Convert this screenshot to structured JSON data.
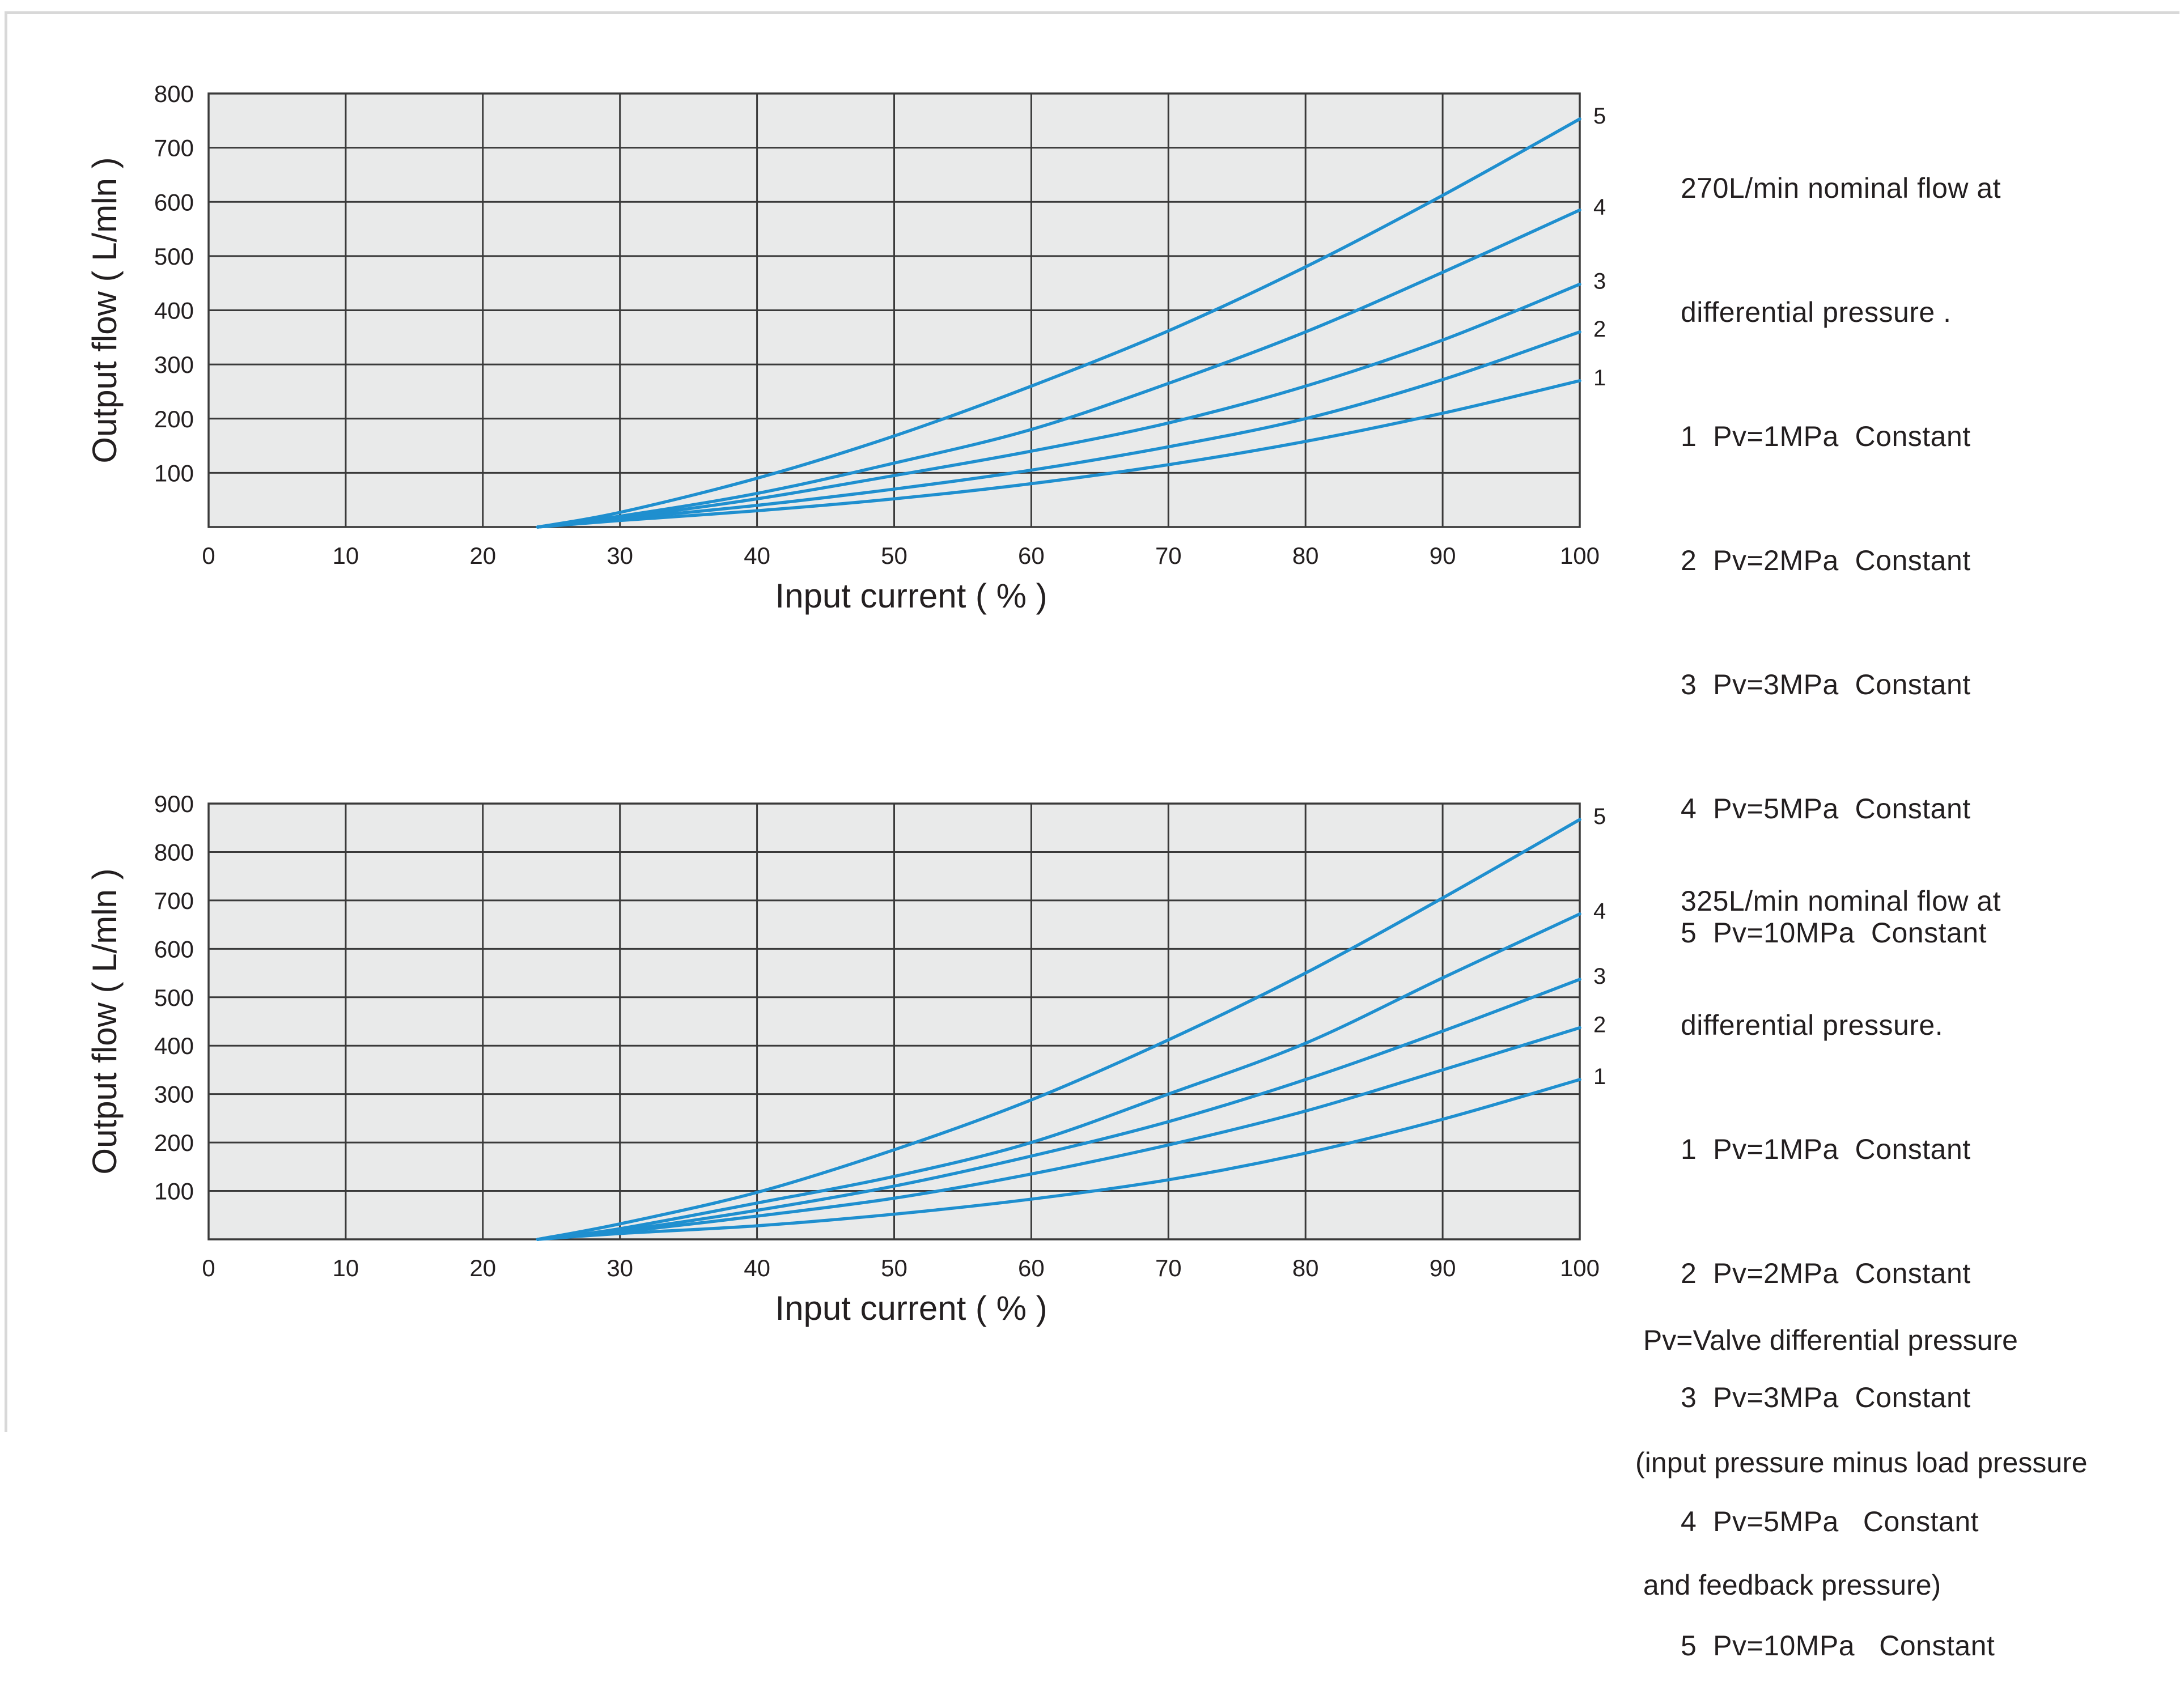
{
  "colors": {
    "curve": "#1f8fcf",
    "plot_bg": "#e9eaea",
    "grid": "#3a3a3a",
    "text": "#231f20"
  },
  "chart_data": [
    {
      "type": "line",
      "xlabel": "Input current  ( % )",
      "ylabel": "Output flow ( L/mln )",
      "xlim": [
        0,
        100
      ],
      "ylim": [
        0,
        800
      ],
      "xticks": [
        0,
        10,
        20,
        30,
        40,
        50,
        60,
        70,
        80,
        90,
        100
      ],
      "yticks": [
        100,
        200,
        300,
        400,
        500,
        600,
        700,
        800
      ],
      "grid": true,
      "legend_position": "right",
      "legend_lines": [
        "270L/min nominal flow at",
        "differential pressure .",
        "1  Pv=1MPa  Constant",
        "2  Pv=2MPa  Constant",
        "3  Pv=3MPa  Constant",
        "4  Pv=5MPa  Constant",
        "5  Pv=10MPa  Constant"
      ],
      "series": [
        {
          "label": "1",
          "x": [
            24,
            30,
            40,
            50,
            60,
            70,
            80,
            90,
            100
          ],
          "y": [
            0,
            12,
            30,
            52,
            80,
            115,
            158,
            210,
            270
          ]
        },
        {
          "label": "2",
          "x": [
            24,
            30,
            40,
            50,
            60,
            70,
            80,
            90,
            100
          ],
          "y": [
            0,
            15,
            40,
            70,
            105,
            148,
            200,
            272,
            360
          ]
        },
        {
          "label": "3",
          "x": [
            24,
            30,
            40,
            50,
            60,
            70,
            80,
            90,
            100
          ],
          "y": [
            0,
            17,
            52,
            95,
            140,
            192,
            260,
            345,
            448
          ]
        },
        {
          "label": "4",
          "x": [
            24,
            30,
            40,
            50,
            60,
            70,
            80,
            90,
            100
          ],
          "y": [
            0,
            20,
            62,
            118,
            180,
            265,
            360,
            470,
            585
          ]
        },
        {
          "label": "5",
          "x": [
            24,
            30,
            40,
            50,
            60,
            70,
            80,
            90,
            100
          ],
          "y": [
            0,
            27,
            90,
            168,
            260,
            362,
            480,
            612,
            753
          ]
        }
      ]
    },
    {
      "type": "line",
      "xlabel": "Input current ( % )",
      "ylabel": "Output flow ( L/mln )",
      "xlim": [
        0,
        100
      ],
      "ylim": [
        0,
        900
      ],
      "xticks": [
        0,
        10,
        20,
        30,
        40,
        50,
        60,
        70,
        80,
        90,
        100
      ],
      "yticks": [
        100,
        200,
        300,
        400,
        500,
        600,
        700,
        800,
        900
      ],
      "grid": true,
      "legend_position": "right",
      "legend_lines": [
        "325L/min nominal flow at",
        "differential pressure.",
        "1  Pv=1MPa  Constant",
        "2  Pv=2MPa  Constant",
        "3  Pv=3MPa  Constant",
        "4  Pv=5MPa   Constant",
        "5  Pv=10MPa   Constant"
      ],
      "note_lines": [
        " Pv=Valve differential pressure",
        "(input pressure minus load pressure",
        " and feedback pressure)"
      ],
      "series": [
        {
          "label": "1",
          "x": [
            24,
            30,
            40,
            50,
            60,
            70,
            80,
            90,
            100
          ],
          "y": [
            0,
            12,
            28,
            52,
            83,
            123,
            178,
            248,
            330
          ]
        },
        {
          "label": "2",
          "x": [
            24,
            30,
            40,
            50,
            60,
            70,
            80,
            90,
            100
          ],
          "y": [
            0,
            15,
            48,
            85,
            135,
            195,
            265,
            350,
            437
          ]
        },
        {
          "label": "3",
          "x": [
            24,
            30,
            40,
            50,
            60,
            70,
            80,
            90,
            100
          ],
          "y": [
            0,
            18,
            60,
            110,
            172,
            243,
            330,
            430,
            537
          ]
        },
        {
          "label": "4",
          "x": [
            24,
            30,
            40,
            50,
            60,
            70,
            80,
            90,
            100
          ],
          "y": [
            0,
            22,
            75,
            130,
            200,
            300,
            405,
            540,
            672
          ]
        },
        {
          "label": "5",
          "x": [
            24,
            30,
            40,
            50,
            60,
            70,
            80,
            90,
            100
          ],
          "y": [
            0,
            32,
            97,
            185,
            288,
            412,
            550,
            705,
            867
          ]
        }
      ]
    }
  ]
}
